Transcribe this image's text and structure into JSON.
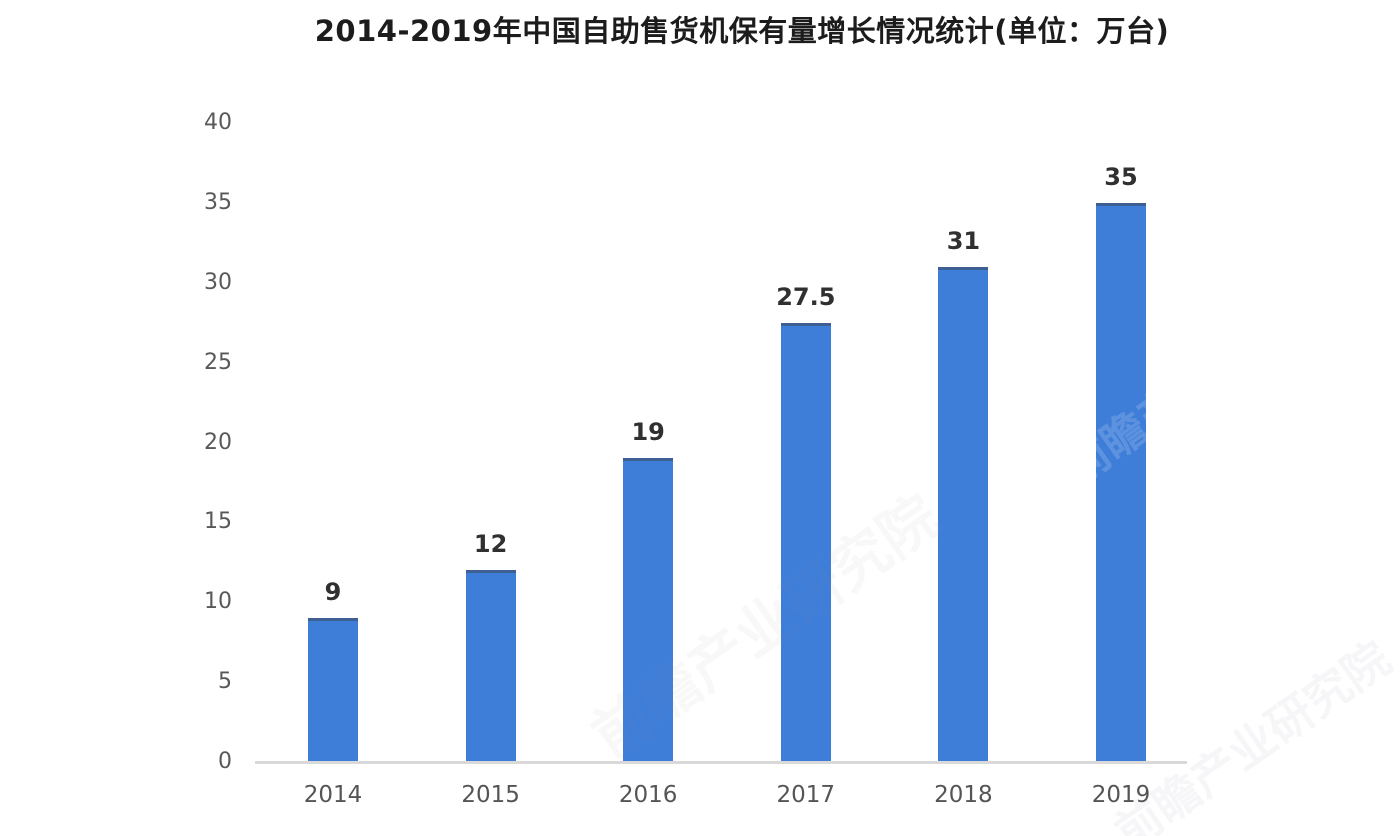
{
  "chart": {
    "title": "2014-2019年中国自助售货机保有量增长情况统计(单位：万台)",
    "watermark": "前瞻产业研究院",
    "colors": {
      "bar": "#3E7DD8",
      "bar_top_edge": "#3E506C",
      "axis_line": "#D9D9D9",
      "y_tick_label": "#595959",
      "x_tick_label": "#555555",
      "value_label": "#303030",
      "title": "#1C1C1C",
      "background": "#FFFFFF"
    }
  },
  "chart_data": {
    "type": "bar",
    "title": "2014-2019年中国自助售货机保有量增长情况统计(单位：万台)",
    "categories": [
      "2014",
      "2015",
      "2016",
      "2017",
      "2018",
      "2019"
    ],
    "values": [
      9,
      12,
      19,
      27.5,
      31,
      35
    ],
    "value_labels": [
      "9",
      "12",
      "19",
      "27.5",
      "31",
      "35"
    ],
    "series": [
      {
        "name": "自助售货机保有量",
        "values": [
          9,
          12,
          19,
          27.5,
          31,
          35
        ]
      }
    ],
    "y_ticks": [
      0,
      5,
      10,
      15,
      20,
      25,
      30,
      35,
      40
    ],
    "ylim": [
      0,
      40
    ],
    "xlabel": "",
    "ylabel": "",
    "unit": "万台",
    "grid": false,
    "legend": false,
    "value_labels_shown": true
  }
}
